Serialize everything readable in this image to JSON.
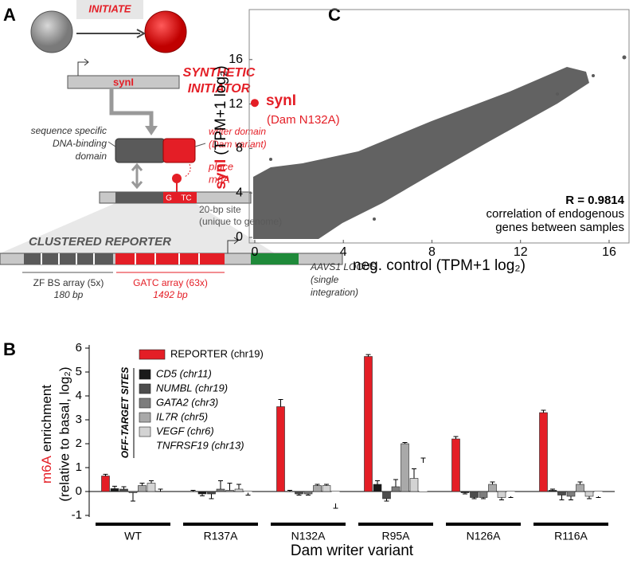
{
  "panel_a": {
    "letter": "A",
    "initiate": "INITIATE",
    "gene": "synI",
    "title_lines": [
      "SYNTHETIC",
      "INITIATOR"
    ],
    "dbd_lines": [
      "sequence specific",
      "DNA-binding",
      "domain"
    ],
    "writer_lines": [
      "writer domain",
      "(Dam variant)"
    ],
    "place_lines": [
      "place",
      "m6A"
    ],
    "site_bases": [
      "G",
      "TC"
    ],
    "site_lines": [
      "20-bp site",
      "(unique to genome)"
    ],
    "reporter": "CLUSTERED REPORTER",
    "locus_lines": [
      "AAVS1 LOCUS",
      "(single",
      "integration)"
    ],
    "zf_lines": [
      "ZF BS array (5x)",
      "180 bp"
    ],
    "gatc_lines": [
      "GATC array (63x)",
      "1492 bp"
    ]
  },
  "panel_letters": {
    "b": "B",
    "c": "C"
  },
  "chart_data": [
    {
      "type": "bar",
      "y_label": {
        "highlight": "m6A",
        "text": "enrichment",
        "subtext": "(relative to basal, log₂)"
      },
      "x_label": "Dam writer variant",
      "legend_group": "OFF-TARGET SITES",
      "categories": [
        "WT",
        "R137A",
        "N132A",
        "R95A",
        "N126A",
        "R116A"
      ],
      "ylim": [
        -1,
        6
      ],
      "yticks": [
        -1,
        0,
        1,
        2,
        3,
        4,
        5,
        6
      ],
      "series": [
        {
          "name": "REPORTER (chr19)",
          "color": "#e41e26",
          "values": [
            0.65,
            0.0,
            3.55,
            5.65,
            2.2,
            3.3
          ],
          "errors": [
            0.07,
            0.05,
            0.3,
            0.08,
            0.1,
            0.1
          ]
        },
        {
          "name": "CD5 (chr11)",
          "color": "#1a1a1a",
          "values": [
            0.12,
            -0.1,
            0.0,
            0.3,
            -0.05,
            0.05
          ],
          "errors": [
            0.1,
            0.08,
            0.05,
            0.15,
            0.05,
            0.05
          ]
        },
        {
          "name": "NUMBL (chr19)",
          "color": "#4d4d4d",
          "values": [
            0.1,
            -0.1,
            -0.1,
            -0.3,
            -0.25,
            -0.15
          ],
          "errors": [
            0.1,
            0.2,
            0.05,
            0.1,
            0.05,
            0.2
          ]
        },
        {
          "name": "GATA2 (chr3)",
          "color": "#7d7d7d",
          "values": [
            -0.05,
            0.1,
            -0.1,
            0.2,
            -0.25,
            -0.2
          ],
          "errors": [
            0.35,
            0.35,
            0.05,
            0.3,
            0.05,
            0.15
          ]
        },
        {
          "name": "IL7R (chr5)",
          "color": "#a9a9a9",
          "values": [
            0.25,
            0.05,
            0.25,
            2.0,
            0.3,
            0.3
          ],
          "errors": [
            0.1,
            0.3,
            0.05,
            0.05,
            0.1,
            0.1
          ]
        },
        {
          "name": "VEGF (chr6)",
          "color": "#d3d3d3",
          "values": [
            0.35,
            0.1,
            0.25,
            0.55,
            -0.25,
            -0.2
          ],
          "errors": [
            0.1,
            0.2,
            0.05,
            0.4,
            0.1,
            0.1
          ]
        },
        {
          "name": "TNFRSF19 (chr13)",
          "color": "#ffffff",
          "values": [
            0.0,
            -0.05,
            -0.5,
            1.2,
            -0.2,
            -0.2
          ],
          "errors": [
            0.1,
            0.1,
            0.2,
            0.2,
            0.05,
            0.05
          ]
        }
      ]
    },
    {
      "type": "scatter",
      "x_label": "neg. control (TPM+1 log₂)",
      "y_label": {
        "highlight": "synI",
        "text": "(TPM+1 log₂)"
      },
      "xlim": [
        -0.25,
        16.9
      ],
      "ylim": [
        -0.5,
        20.5
      ],
      "xticks": [
        0,
        4,
        8,
        12,
        16
      ],
      "yticks": [
        0,
        4,
        8,
        12,
        16
      ],
      "series": [
        {
          "name": "synI",
          "label": "(Dam N132A)",
          "color": "#e41e26",
          "x": [
            0
          ],
          "y": [
            12.1
          ]
        }
      ],
      "annotations": [
        "R = 0.9814",
        "correlation of endogenous",
        "genes between samples"
      ]
    }
  ]
}
